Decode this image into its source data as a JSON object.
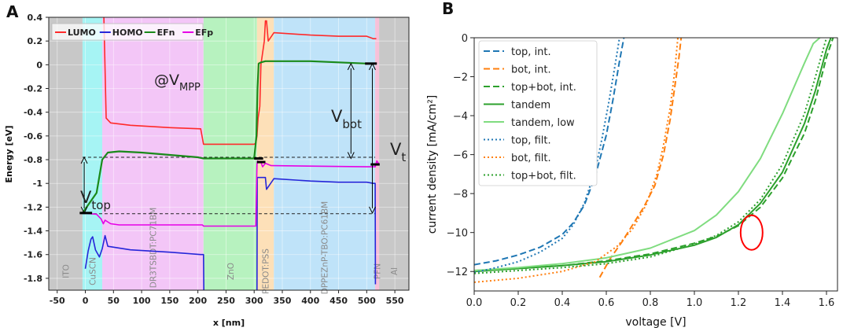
{
  "panels": {
    "a": {
      "letter": "A"
    },
    "b": {
      "letter": "B"
    }
  },
  "chart_data": [
    {
      "type": "line",
      "panel": "A",
      "xlabel": "x [nm]",
      "ylabel": "Energy [eV]",
      "xlim": [
        -65,
        575
      ],
      "ylim": [
        -1.9,
        0.4
      ],
      "xticks": [
        -50,
        0,
        50,
        100,
        150,
        200,
        250,
        300,
        350,
        400,
        450,
        500,
        550
      ],
      "yticks": [
        0.4,
        0.2,
        0,
        -0.2,
        -0.4,
        -0.6,
        -0.8,
        -1,
        -1.2,
        -1.4,
        -1.6,
        -1.8
      ],
      "ytick_labels": [
        "0.4",
        "0.2",
        "0",
        "-0.2",
        "-0.4",
        "-0.6",
        "-0.8",
        "-1",
        "-1.2",
        "-1.4",
        "-1.6",
        "-1.8"
      ],
      "grid": true,
      "legend": "top-left",
      "colors": {
        "LUMO": "#ff2a2a",
        "HOMO": "#2626d9",
        "EFn": "#1a8a1a",
        "EFp": "#e600e6"
      },
      "layers": [
        {
          "name": "ITO",
          "x0": -65,
          "x1": -5,
          "color": "#c8c8c8"
        },
        {
          "name": "CuSCN",
          "x0": -5,
          "x1": 30,
          "color": "#a6f4f4"
        },
        {
          "name": "DR3TSBDT:PC71BM",
          "x0": 30,
          "x1": 210,
          "color": "#f3c6f7"
        },
        {
          "name": "ZnO",
          "x0": 210,
          "x1": 305,
          "color": "#b7f2bf"
        },
        {
          "name": "PEDOT:PSS",
          "x0": 305,
          "x1": 335,
          "color": "#fde0b8"
        },
        {
          "name": "DPPEZnP-TBO:PC61BM",
          "x0": 335,
          "x1": 515,
          "color": "#bfe3f9"
        },
        {
          "name": "PFN",
          "x0": 515,
          "x1": 522,
          "color": "#f7c0d8"
        },
        {
          "name": "Al",
          "x0": 522,
          "x1": 575,
          "color": "#c8c8c8"
        }
      ],
      "series": [
        {
          "name": "LUMO",
          "x": [
            33,
            37,
            45,
            80,
            150,
            205,
            210,
            212,
            250,
            300,
            303,
            305,
            307,
            310,
            312,
            318,
            320,
            322,
            325,
            335,
            400,
            450,
            500,
            512,
            517
          ],
          "y": [
            0.4,
            -0.45,
            -0.49,
            -0.51,
            -0.53,
            -0.54,
            -0.67,
            -0.67,
            -0.67,
            -0.67,
            -0.66,
            -0.6,
            -0.45,
            -0.35,
            0.0,
            0.2,
            0.37,
            0.37,
            0.2,
            0.27,
            0.25,
            0.24,
            0.24,
            0.22,
            0.22
          ]
        },
        {
          "name": "HOMO",
          "x": [
            0,
            5,
            10,
            13,
            18,
            25,
            30,
            35,
            40,
            80,
            150,
            205,
            210,
            210.5
          ],
          "y": [
            -1.72,
            -1.57,
            -1.47,
            -1.45,
            -1.56,
            -1.62,
            -1.55,
            -1.44,
            -1.53,
            -1.56,
            -1.58,
            -1.6,
            -1.6,
            -1.9
          ]
        },
        {
          "name": "HOMO-right",
          "x": [
            305,
            305.5,
            307,
            320,
            322,
            335,
            400,
            450,
            500,
            512,
            515,
            515.5
          ],
          "y": [
            -1.9,
            -0.95,
            -0.95,
            -0.95,
            -1.05,
            -0.96,
            -0.98,
            -0.99,
            -0.99,
            -1.0,
            -1.0,
            -1.85
          ]
        },
        {
          "name": "EFn",
          "x": [
            -5,
            20,
            30,
            40,
            60,
            100,
            150,
            200,
            210,
            250,
            300,
            304,
            306,
            308,
            312,
            320,
            400,
            450,
            500,
            515
          ],
          "y": [
            -1.25,
            -1.08,
            -0.8,
            -0.74,
            -0.73,
            -0.74,
            -0.76,
            -0.78,
            -0.79,
            -0.79,
            -0.79,
            -0.6,
            -0.2,
            0.01,
            0.02,
            0.03,
            0.03,
            0.02,
            0.01,
            0.01
          ]
        },
        {
          "name": "EFp",
          "x": [
            -5,
            20,
            28,
            32,
            35,
            45,
            60,
            150,
            200,
            208,
            210,
            303,
            305,
            306,
            309,
            312,
            315,
            320,
            330,
            500,
            512,
            515,
            518,
            522
          ],
          "y": [
            -1.25,
            -1.26,
            -1.3,
            -1.34,
            -1.31,
            -1.34,
            -1.35,
            -1.35,
            -1.35,
            -1.35,
            -1.36,
            -1.36,
            -0.84,
            -0.81,
            -0.82,
            -0.82,
            -0.86,
            -0.83,
            -0.85,
            -0.86,
            -0.86,
            -0.86,
            -0.81,
            -0.84
          ]
        }
      ],
      "legend_entries": [
        "LUMO",
        "HOMO",
        "EFn",
        "EFp"
      ],
      "dashed_levels": [
        -0.78,
        -1.255
      ],
      "annotations": {
        "vmpp_main": "@V",
        "vmpp_sub": "MPP",
        "vbot_main": "V",
        "vbot_sub": "bot",
        "vt_main": "V",
        "vt_sub": "t",
        "vtop_main": "V",
        "vtop_sub": "top"
      }
    },
    {
      "type": "line",
      "panel": "B",
      "xlabel": "voltage [V]",
      "ylabel": "current density [mA/cm²]",
      "xlim": [
        0,
        1.65
      ],
      "ylim": [
        -13,
        0
      ],
      "xticks": [
        0.0,
        0.2,
        0.4,
        0.6,
        0.8,
        1.0,
        1.2,
        1.4,
        1.6
      ],
      "xtick_labels": [
        "0.0",
        "0.2",
        "0.4",
        "0.6",
        "0.8",
        "1.0",
        "1.2",
        "1.4",
        "1.6"
      ],
      "yticks": [
        0,
        -2,
        -4,
        -6,
        -8,
        -10,
        -12
      ],
      "ytick_labels": [
        "0",
        "−2",
        "−4",
        "−6",
        "−8",
        "−10",
        "−12"
      ],
      "grid": false,
      "legend": "top-left",
      "colors": {
        "blue": "#1f77b4",
        "orange": "#ff7f0e",
        "green": "#2ca02c",
        "lightgreen": "#7fdc7f",
        "marker": "#ff0000"
      },
      "series": [
        {
          "name": "top, int.",
          "color": "#1f77b4",
          "dash": "dash",
          "x": [
            0.0,
            0.1,
            0.2,
            0.3,
            0.4,
            0.45,
            0.5,
            0.55,
            0.6,
            0.63,
            0.66,
            0.68
          ],
          "y": [
            -11.65,
            -11.45,
            -11.15,
            -10.75,
            -10.1,
            -9.5,
            -8.6,
            -7.1,
            -5.0,
            -3.2,
            -1.2,
            0.0
          ]
        },
        {
          "name": "bot, int.",
          "color": "#ff7f0e",
          "dash": "dash",
          "x": [
            0.57,
            0.62,
            0.67,
            0.72,
            0.77,
            0.82,
            0.86,
            0.89,
            0.91,
            0.93,
            0.94
          ],
          "y": [
            -12.3,
            -11.3,
            -10.5,
            -9.6,
            -8.7,
            -7.6,
            -6.0,
            -4.2,
            -2.6,
            -1.0,
            0.0
          ]
        },
        {
          "name": "top+bot, int.",
          "color": "#2ca02c",
          "dash": "dash",
          "x": [
            0.0,
            0.2,
            0.4,
            0.6,
            0.8,
            1.0,
            1.1,
            1.2,
            1.3,
            1.4,
            1.5,
            1.55,
            1.6,
            1.63
          ],
          "y": [
            -11.95,
            -11.85,
            -11.7,
            -11.45,
            -11.1,
            -10.55,
            -10.2,
            -9.65,
            -8.7,
            -7.2,
            -4.9,
            -3.2,
            -1.0,
            0.0
          ]
        },
        {
          "name": "tandem",
          "color": "#2ca02c",
          "dash": "solid",
          "x": [
            0.0,
            0.2,
            0.4,
            0.6,
            0.8,
            1.0,
            1.1,
            1.2,
            1.3,
            1.4,
            1.5,
            1.55,
            1.6,
            1.62
          ],
          "y": [
            -12.0,
            -11.85,
            -11.7,
            -11.5,
            -11.15,
            -10.65,
            -10.25,
            -9.6,
            -8.5,
            -6.9,
            -4.4,
            -2.7,
            -0.6,
            0.0
          ]
        },
        {
          "name": "tandem, low",
          "color": "#7fdc7f",
          "dash": "solid",
          "x": [
            0.0,
            0.2,
            0.4,
            0.6,
            0.8,
            1.0,
            1.1,
            1.2,
            1.3,
            1.4,
            1.45,
            1.5,
            1.54,
            1.57
          ],
          "y": [
            -11.95,
            -11.8,
            -11.6,
            -11.3,
            -10.8,
            -9.9,
            -9.1,
            -7.9,
            -6.2,
            -3.9,
            -2.6,
            -1.3,
            -0.3,
            0.0
          ]
        },
        {
          "name": "top, filt.",
          "color": "#1f77b4",
          "dash": "dot",
          "x": [
            0.0,
            0.1,
            0.2,
            0.3,
            0.4,
            0.45,
            0.5,
            0.55,
            0.58,
            0.61,
            0.64,
            0.66
          ],
          "y": [
            -12.05,
            -11.8,
            -11.5,
            -11.0,
            -10.3,
            -9.6,
            -8.5,
            -6.8,
            -5.2,
            -3.4,
            -1.4,
            0.0
          ]
        },
        {
          "name": "bot, filt.",
          "color": "#ff7f0e",
          "dash": "dot",
          "x": [
            0.0,
            0.2,
            0.4,
            0.55,
            0.65,
            0.72,
            0.78,
            0.83,
            0.86,
            0.89,
            0.91,
            0.925
          ],
          "y": [
            -12.55,
            -12.35,
            -12.0,
            -11.5,
            -10.7,
            -9.8,
            -8.6,
            -7.0,
            -5.5,
            -3.6,
            -1.8,
            0.0
          ]
        },
        {
          "name": "top+bot, filt.",
          "color": "#2ca02c",
          "dash": "dot",
          "x": [
            0.0,
            0.2,
            0.4,
            0.6,
            0.8,
            1.0,
            1.1,
            1.2,
            1.3,
            1.4,
            1.5,
            1.55,
            1.58,
            1.6
          ],
          "y": [
            -12.1,
            -11.95,
            -11.8,
            -11.6,
            -11.25,
            -10.6,
            -10.15,
            -9.45,
            -8.3,
            -6.5,
            -3.9,
            -2.0,
            -0.8,
            0.0
          ]
        }
      ],
      "legend_entries": [
        "top, int.",
        "bot, int.",
        "top+bot, int.",
        "tandem",
        "tandem, low",
        "top, filt.",
        "bot, filt.",
        "top+bot, filt."
      ],
      "highlight": {
        "x": 1.26,
        "y": -10.0
      }
    }
  ]
}
